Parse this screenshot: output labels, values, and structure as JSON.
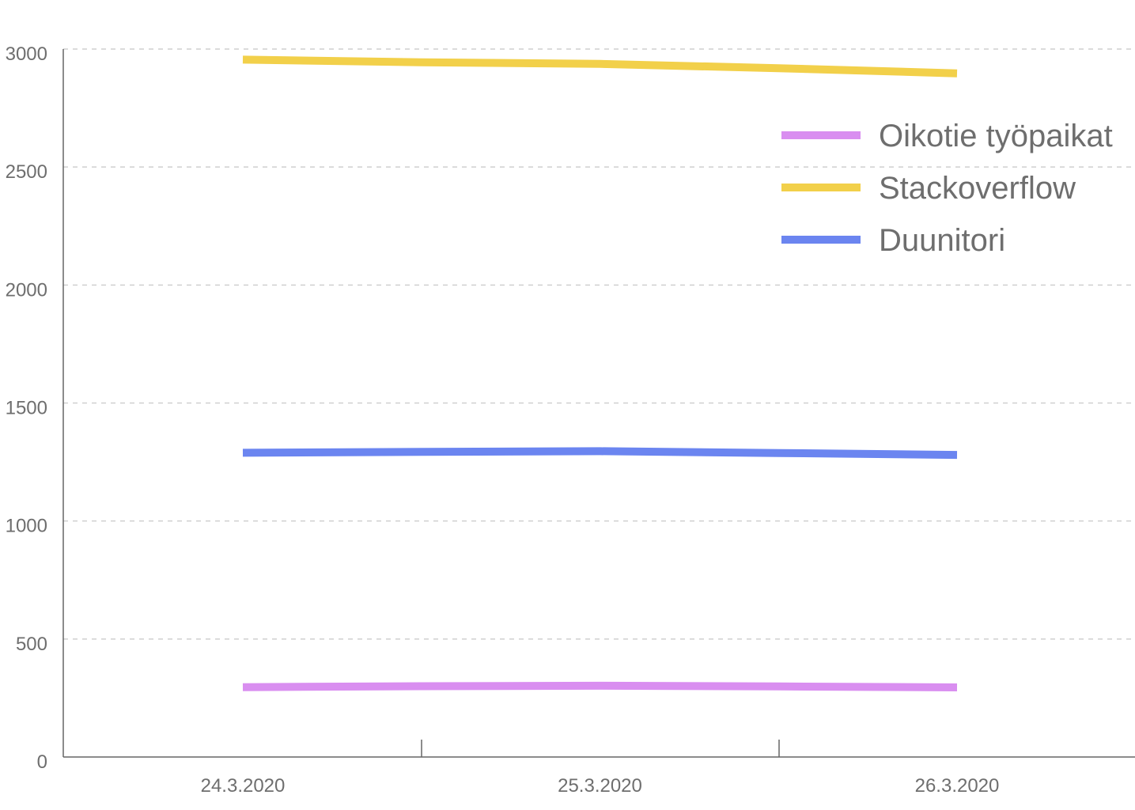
{
  "chart_data": {
    "type": "line",
    "title": "",
    "xlabel": "",
    "ylabel": "",
    "categories": [
      "24.3.2020",
      "25.3.2020",
      "26.3.2020"
    ],
    "x": [
      0,
      0.5,
      1,
      1.5,
      2
    ],
    "y_ticks": [
      "0",
      "500",
      "1000",
      "1500",
      "2000",
      "2500",
      "3000"
    ],
    "ylim": [
      0,
      3000
    ],
    "grid": true,
    "legend_position": "top-right",
    "series": [
      {
        "name": "Oikotie työpaikat",
        "color": "#d98ef0",
        "values": [
          296,
          300,
          302,
          299,
          295
        ]
      },
      {
        "name": "Stackoverflow",
        "color": "#f2d04a",
        "values": [
          2955,
          2944,
          2937,
          2919,
          2897
        ]
      },
      {
        "name": "Duunitori",
        "color": "#6b85f0",
        "values": [
          1289,
          1293,
          1296,
          1288,
          1280
        ]
      }
    ]
  }
}
